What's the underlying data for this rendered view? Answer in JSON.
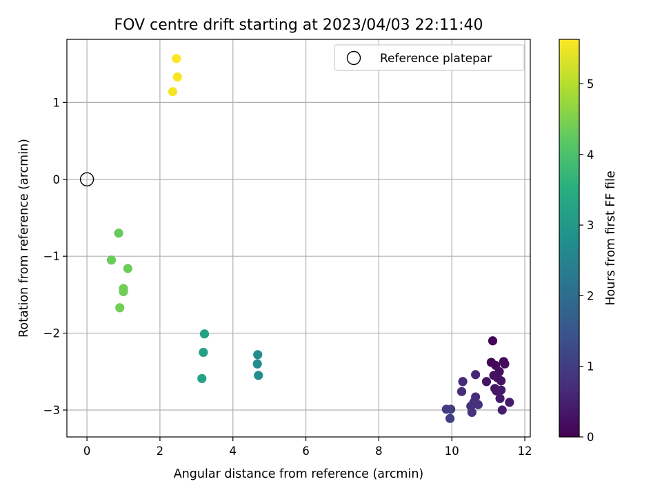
{
  "chart_data": {
    "type": "scatter",
    "title": "FOV centre drift starting at 2023/04/03 22:11:40",
    "xlabel": "Angular distance from reference (arcmin)",
    "ylabel": "Rotation from reference (arcmin)",
    "xlim": [
      -0.55,
      12.15
    ],
    "ylim": [
      -3.35,
      1.82
    ],
    "xticks": [
      0,
      2,
      4,
      6,
      8,
      10,
      12
    ],
    "yticks": [
      -3,
      -2,
      -1,
      0,
      1
    ],
    "grid": true,
    "legend": {
      "placement": "top-right",
      "entries": [
        {
          "label": "Reference platepar",
          "marker": "open-circle",
          "x": 0,
          "y": 0
        }
      ]
    },
    "colorbar": {
      "label": "Hours from first FF file",
      "range": [
        0,
        5.63
      ],
      "ticks": [
        0,
        1,
        2,
        3,
        4,
        5
      ],
      "colormap": "viridis"
    },
    "series": [
      {
        "points": [
          {
            "x": 11.12,
            "y": -2.1,
            "c": 0.05
          },
          {
            "x": 11.08,
            "y": -2.38,
            "c": 0.1
          },
          {
            "x": 11.2,
            "y": -2.42,
            "c": 0.12
          },
          {
            "x": 11.42,
            "y": -2.37,
            "c": 0.15
          },
          {
            "x": 11.45,
            "y": -2.4,
            "c": 0.18
          },
          {
            "x": 11.3,
            "y": -2.5,
            "c": 0.2
          },
          {
            "x": 11.15,
            "y": -2.55,
            "c": 0.22
          },
          {
            "x": 11.25,
            "y": -2.58,
            "c": 0.25
          },
          {
            "x": 11.35,
            "y": -2.62,
            "c": 0.28
          },
          {
            "x": 10.95,
            "y": -2.63,
            "c": 0.3
          },
          {
            "x": 11.18,
            "y": -2.72,
            "c": 0.32
          },
          {
            "x": 11.22,
            "y": -2.75,
            "c": 0.35
          },
          {
            "x": 11.35,
            "y": -2.74,
            "c": 0.38
          },
          {
            "x": 11.32,
            "y": -2.85,
            "c": 0.4
          },
          {
            "x": 11.58,
            "y": -2.9,
            "c": 0.42
          },
          {
            "x": 11.38,
            "y": -3.0,
            "c": 0.45
          },
          {
            "x": 10.65,
            "y": -2.54,
            "c": 0.6
          },
          {
            "x": 10.3,
            "y": -2.63,
            "c": 0.65
          },
          {
            "x": 10.27,
            "y": -2.76,
            "c": 0.7
          },
          {
            "x": 10.65,
            "y": -2.83,
            "c": 0.72
          },
          {
            "x": 10.6,
            "y": -2.9,
            "c": 0.75
          },
          {
            "x": 10.72,
            "y": -2.93,
            "c": 0.78
          },
          {
            "x": 10.52,
            "y": -2.95,
            "c": 0.8
          },
          {
            "x": 10.55,
            "y": -3.03,
            "c": 0.82
          },
          {
            "x": 9.85,
            "y": -2.99,
            "c": 1.0
          },
          {
            "x": 9.97,
            "y": -2.99,
            "c": 1.02
          },
          {
            "x": 9.95,
            "y": -3.11,
            "c": 1.05
          },
          {
            "x": 4.68,
            "y": -2.28,
            "c": 2.7
          },
          {
            "x": 4.67,
            "y": -2.4,
            "c": 2.72
          },
          {
            "x": 4.7,
            "y": -2.55,
            "c": 2.75
          },
          {
            "x": 3.22,
            "y": -2.01,
            "c": 3.2
          },
          {
            "x": 3.19,
            "y": -2.25,
            "c": 3.22
          },
          {
            "x": 3.15,
            "y": -2.59,
            "c": 3.25
          },
          {
            "x": 0.87,
            "y": -0.7,
            "c": 4.3
          },
          {
            "x": 0.67,
            "y": -1.05,
            "c": 4.32
          },
          {
            "x": 1.12,
            "y": -1.16,
            "c": 4.35
          },
          {
            "x": 1.0,
            "y": -1.42,
            "c": 4.37
          },
          {
            "x": 1.0,
            "y": -1.46,
            "c": 4.38
          },
          {
            "x": 0.9,
            "y": -1.67,
            "c": 4.4
          },
          {
            "x": 2.45,
            "y": 1.57,
            "c": 5.6
          },
          {
            "x": 2.48,
            "y": 1.33,
            "c": 5.58
          },
          {
            "x": 2.35,
            "y": 1.14,
            "c": 5.55
          }
        ]
      }
    ]
  }
}
